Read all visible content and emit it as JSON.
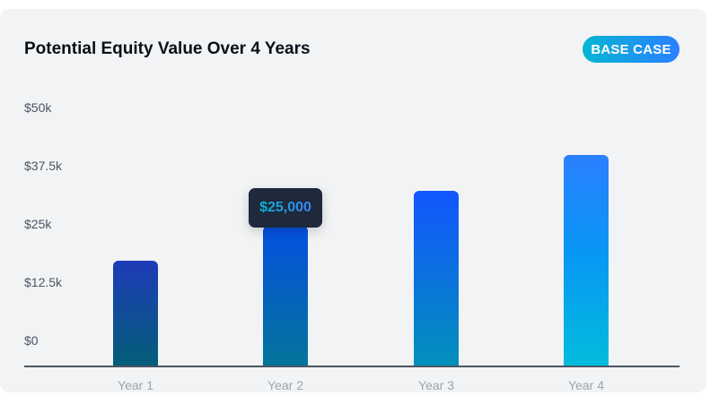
{
  "card": {
    "title": "Potential Equity Value Over 4 Years",
    "badge": "BASE CASE"
  },
  "tooltip": {
    "label": "$25,000",
    "category": "Year 2"
  },
  "y_ticks": [
    "$50k",
    "$37.5k",
    "$25k",
    "$12.5k",
    "$0"
  ],
  "x_labels": [
    "Year 1",
    "Year 2",
    "Year 3",
    "Year 4"
  ],
  "colors": {
    "badge_gradient": [
      "#06b6d4",
      "#2b7fff"
    ],
    "bar1": [
      "#1e3bb8",
      "#035e78"
    ],
    "bar2": [
      "#0550e0",
      "#04759a"
    ],
    "bar3": [
      "#1356ff",
      "#0290bb"
    ],
    "bar4": [
      "#2a80ff",
      "#02bcdc"
    ]
  },
  "chart_data": {
    "type": "bar",
    "title": "Potential Equity Value Over 4 Years",
    "subtitle": "BASE CASE",
    "categories": [
      "Year 1",
      "Year 2",
      "Year 3",
      "Year 4"
    ],
    "values": [
      18750,
      25000,
      31250,
      37500
    ],
    "xlabel": "",
    "ylabel": "",
    "ylim": [
      0,
      50000
    ],
    "y_tick_labels": [
      "$0",
      "$12.5k",
      "$25k",
      "$37.5k",
      "$50k"
    ],
    "annotations": [
      {
        "category": "Year 2",
        "text": "$25,000"
      }
    ],
    "grid": false,
    "legend": null
  }
}
